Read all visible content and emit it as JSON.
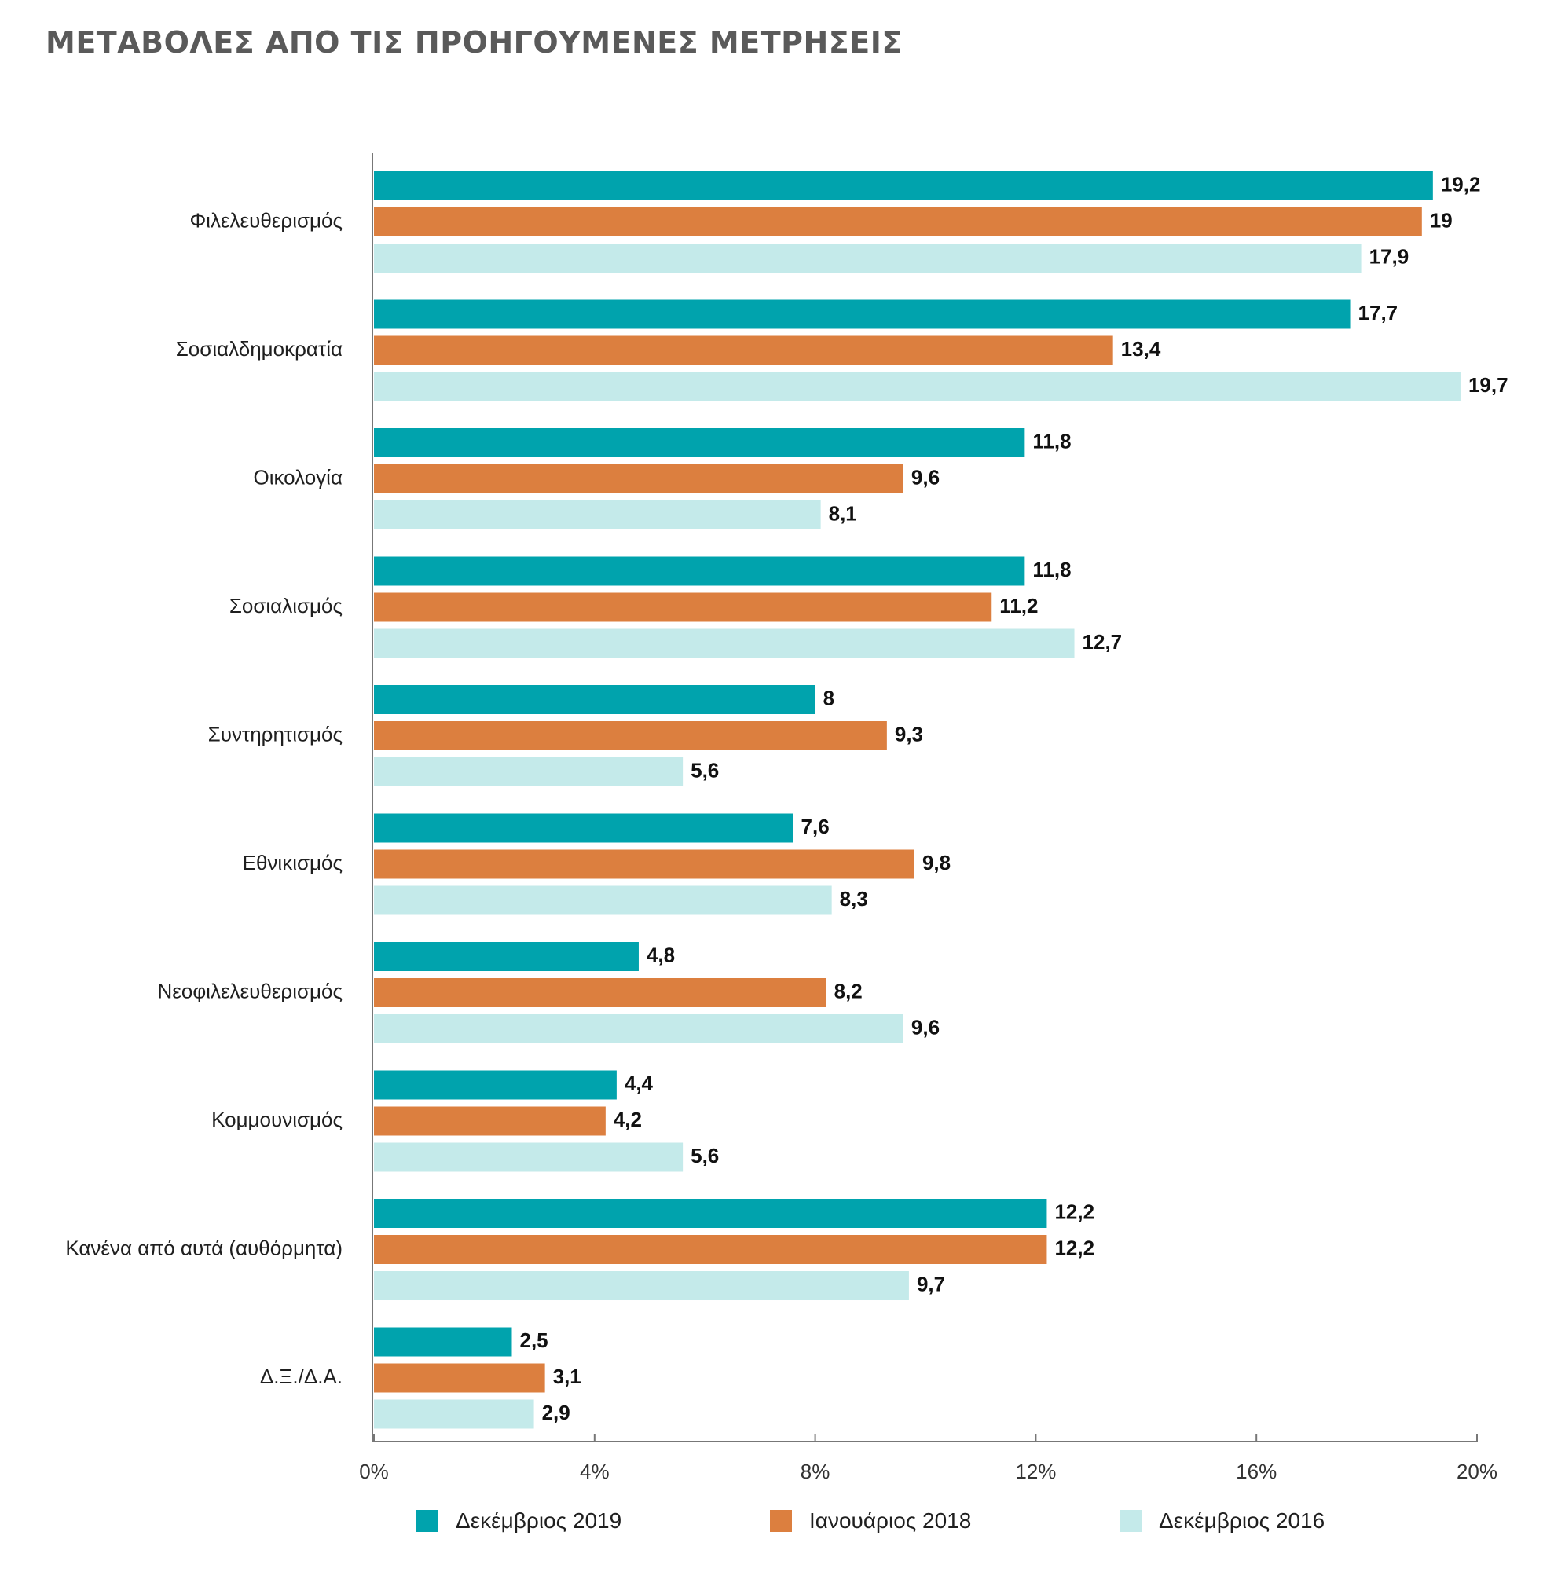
{
  "title": "ΜΕΤΑΒΟΛΕΣ ΑΠΟ ΤΙΣ ΠΡΟΗΓΟΥΜΕΝΕΣ ΜΕΤΡΗΣΕΙΣ",
  "chart_data": {
    "type": "bar",
    "orientation": "horizontal",
    "title": "ΜΕΤΑΒΟΛΕΣ ΑΠΟ ΤΙΣ ΠΡΟΗΓΟΥΜΕΝΕΣ ΜΕΤΡΗΣΕΙΣ",
    "categories": [
      "Φιλελευθερισμός",
      "Σοσιαλδημοκρατία",
      "Οικολογία",
      "Σοσιαλισμός",
      "Συντηρητισμός",
      "Εθνικισμός",
      "Νεοφιλελευθερισμός",
      "Κομμουνισμός",
      "Κανένα από αυτά (αυθόρμητα)",
      "Δ.Ξ./Δ.Α."
    ],
    "series": [
      {
        "name": "Δεκέμβριος 2019",
        "color": "#00a3ad",
        "values": [
          19.2,
          17.7,
          11.8,
          11.8,
          8,
          7.6,
          4.8,
          4.4,
          12.2,
          2.5
        ],
        "labels": [
          "19,2",
          "17,7",
          "11,8",
          "11,8",
          "8",
          "7,6",
          "4,8",
          "4,4",
          "12,2",
          "2,5"
        ]
      },
      {
        "name": "Ιανουάριος 2018",
        "color": "#dc7f3f",
        "values": [
          19,
          13.4,
          9.6,
          11.2,
          9.3,
          9.8,
          8.2,
          4.2,
          12.2,
          3.1
        ],
        "labels": [
          "19",
          "13,4",
          "9,6",
          "11,2",
          "9,3",
          "9,8",
          "8,2",
          "4,2",
          "12,2",
          "3,1"
        ]
      },
      {
        "name": "Δεκέμβριος 2016",
        "color": "#c4eaea",
        "values": [
          17.9,
          19.7,
          8.1,
          12.7,
          5.6,
          8.3,
          9.6,
          5.6,
          9.7,
          2.9
        ],
        "labels": [
          "17,9",
          "19,7",
          "8,1",
          "12,7",
          "5,6",
          "8,3",
          "9,6",
          "5,6",
          "9,7",
          "2,9"
        ]
      }
    ],
    "xlim": [
      0,
      20
    ],
    "xticks": [
      0,
      4,
      8,
      12,
      16,
      20
    ],
    "xtick_labels": [
      "0%",
      "4%",
      "8%",
      "12%",
      "16%",
      "20%"
    ],
    "grid": false,
    "legend_position": "bottom"
  }
}
